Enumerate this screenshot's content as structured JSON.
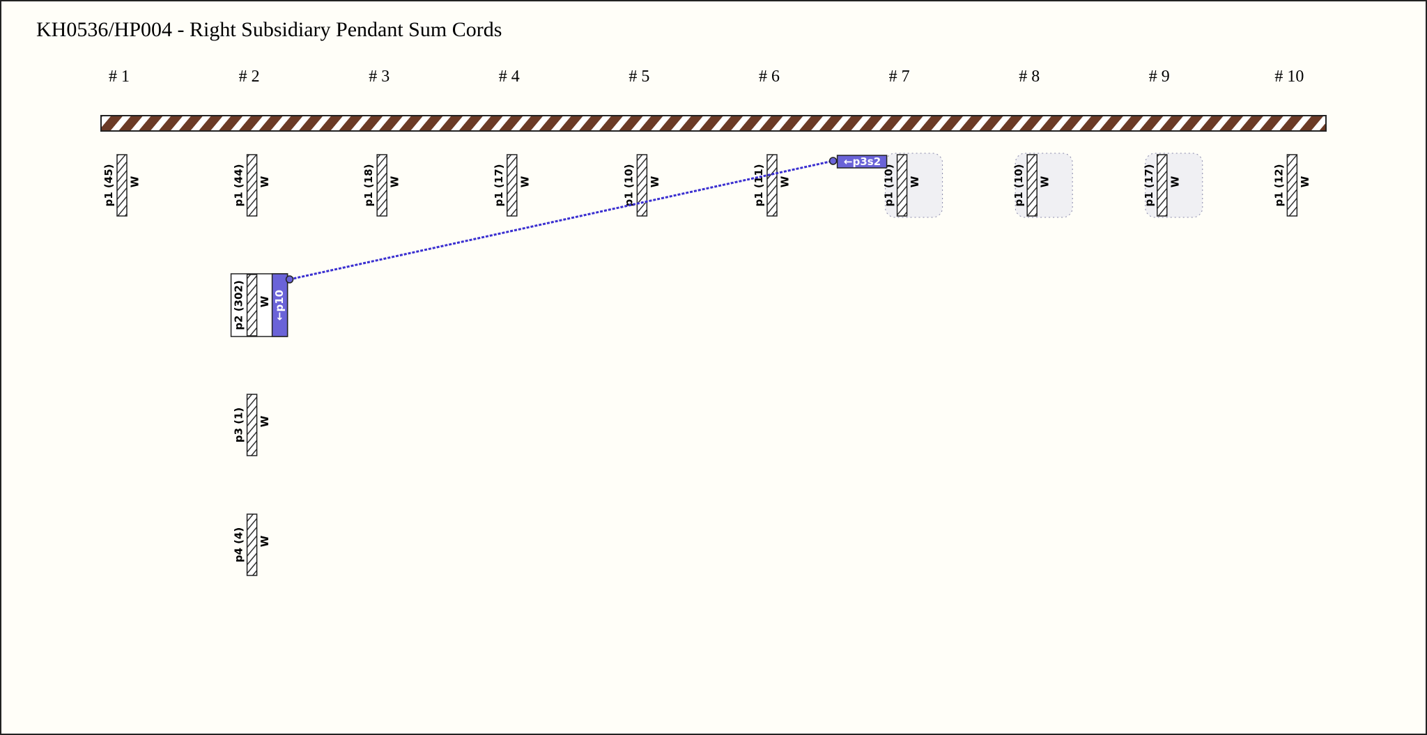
{
  "title": "KH0536/HP004 - Right Subsidiary Pendant Sum Cords",
  "groups": [
    {
      "label": "# 1",
      "cords": [
        {
          "label": "p1 (45)",
          "color": "W"
        }
      ]
    },
    {
      "label": "# 2",
      "cords": [
        {
          "label": "p1 (44)",
          "color": "W"
        },
        {
          "label": "p2 (302)",
          "color": "W",
          "sum_label": "←p10"
        },
        {
          "label": "p3 (1)",
          "color": "W"
        },
        {
          "label": "p4 (4)",
          "color": "W"
        }
      ]
    },
    {
      "label": "# 3",
      "cords": [
        {
          "label": "p1 (18)",
          "color": "W"
        }
      ]
    },
    {
      "label": "# 4",
      "cords": [
        {
          "label": "p1 (17)",
          "color": "W"
        }
      ]
    },
    {
      "label": "# 5",
      "cords": [
        {
          "label": "p1 (10)",
          "color": "W"
        }
      ]
    },
    {
      "label": "# 6",
      "cords": [
        {
          "label": "p1 (11)",
          "color": "W"
        }
      ]
    },
    {
      "label": "# 7",
      "highlight": true,
      "cords": [
        {
          "label": "p1 (10)",
          "color": "W",
          "sum_label": "←p3s2"
        }
      ]
    },
    {
      "label": "# 8",
      "highlight": true,
      "cords": [
        {
          "label": "p1 (10)",
          "color": "W"
        }
      ]
    },
    {
      "label": "# 9",
      "highlight": true,
      "cords": [
        {
          "label": "p1 (17)",
          "color": "W"
        }
      ]
    },
    {
      "label": "# 10",
      "cords": [
        {
          "label": "p1 (12)",
          "color": "W"
        }
      ]
    }
  ]
}
